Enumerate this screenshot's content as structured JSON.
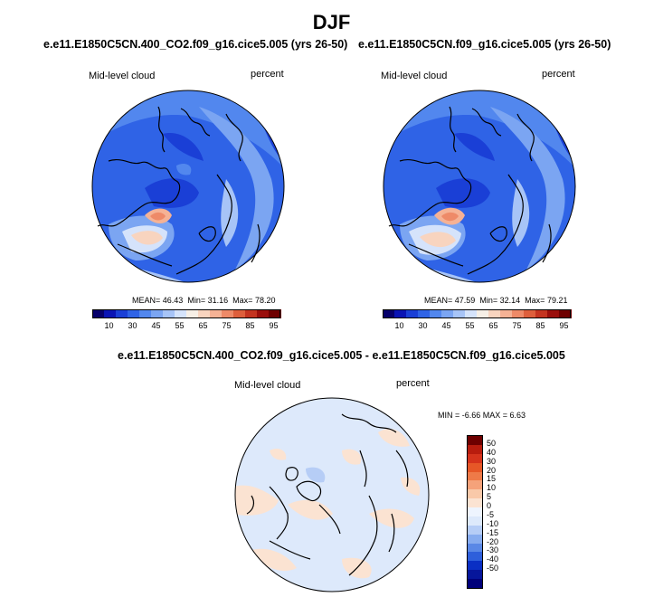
{
  "figure": {
    "title": "DJF"
  },
  "panels": [
    {
      "title": "e.e11.E1850C5CN.400_CO2.f09_g16.cice5.005 (yrs 26-50)",
      "field_label": "Mid-level cloud",
      "units": "percent",
      "stats": {
        "mean_label": "MEAN=",
        "mean": "46.43",
        "min_label": "Min=",
        "min": "31.16",
        "max_label": "Max=",
        "max": "78.20"
      }
    },
    {
      "title": "e.e11.E1850C5CN.f09_g16.cice5.005 (yrs 26-50)",
      "field_label": "Mid-level cloud",
      "units": "percent",
      "stats": {
        "mean_label": "MEAN=",
        "mean": "47.59",
        "min_label": "Min=",
        "min": "32.14",
        "max_label": "Max=",
        "max": "79.21"
      }
    }
  ],
  "diff_panel": {
    "title": "e.e11.E1850C5CN.400_CO2.f09_g16.cice5.005 - e.e11.E1850C5CN.f09_g16.cice5.005",
    "field_label": "Mid-level cloud",
    "units": "percent",
    "minmax_text": "MIN =  -6.66 MAX =   6.63"
  },
  "colorbar_abs": {
    "labels": [
      "10",
      "30",
      "45",
      "55",
      "65",
      "75",
      "85",
      "95"
    ],
    "colors": [
      "#06006b",
      "#0a14b4",
      "#1a3fd6",
      "#2f63e6",
      "#5287ee",
      "#7ba5f2",
      "#a7c4f7",
      "#d5e3fb",
      "#f6efe6",
      "#f8d4bf",
      "#f5b295",
      "#ee8a68",
      "#de5f3c",
      "#c43420",
      "#9a0f0c",
      "#6e0000"
    ]
  },
  "colorbar_diff": {
    "labels": [
      "50",
      "40",
      "30",
      "20",
      "15",
      "10",
      "5",
      "0",
      "-5",
      "-10",
      "-15",
      "-20",
      "-30",
      "-40",
      "-50"
    ],
    "colors": [
      "#6e0000",
      "#b81c0e",
      "#d5331c",
      "#e65727",
      "#ee7a48",
      "#f5a27a",
      "#f9c9a9",
      "#fbe3d2",
      "#eef4fe",
      "#dde9fb",
      "#b6cdf6",
      "#87acef",
      "#5a88e6",
      "#2e5fdb",
      "#0a2fc4",
      "#06169b",
      "#00007a"
    ]
  }
}
